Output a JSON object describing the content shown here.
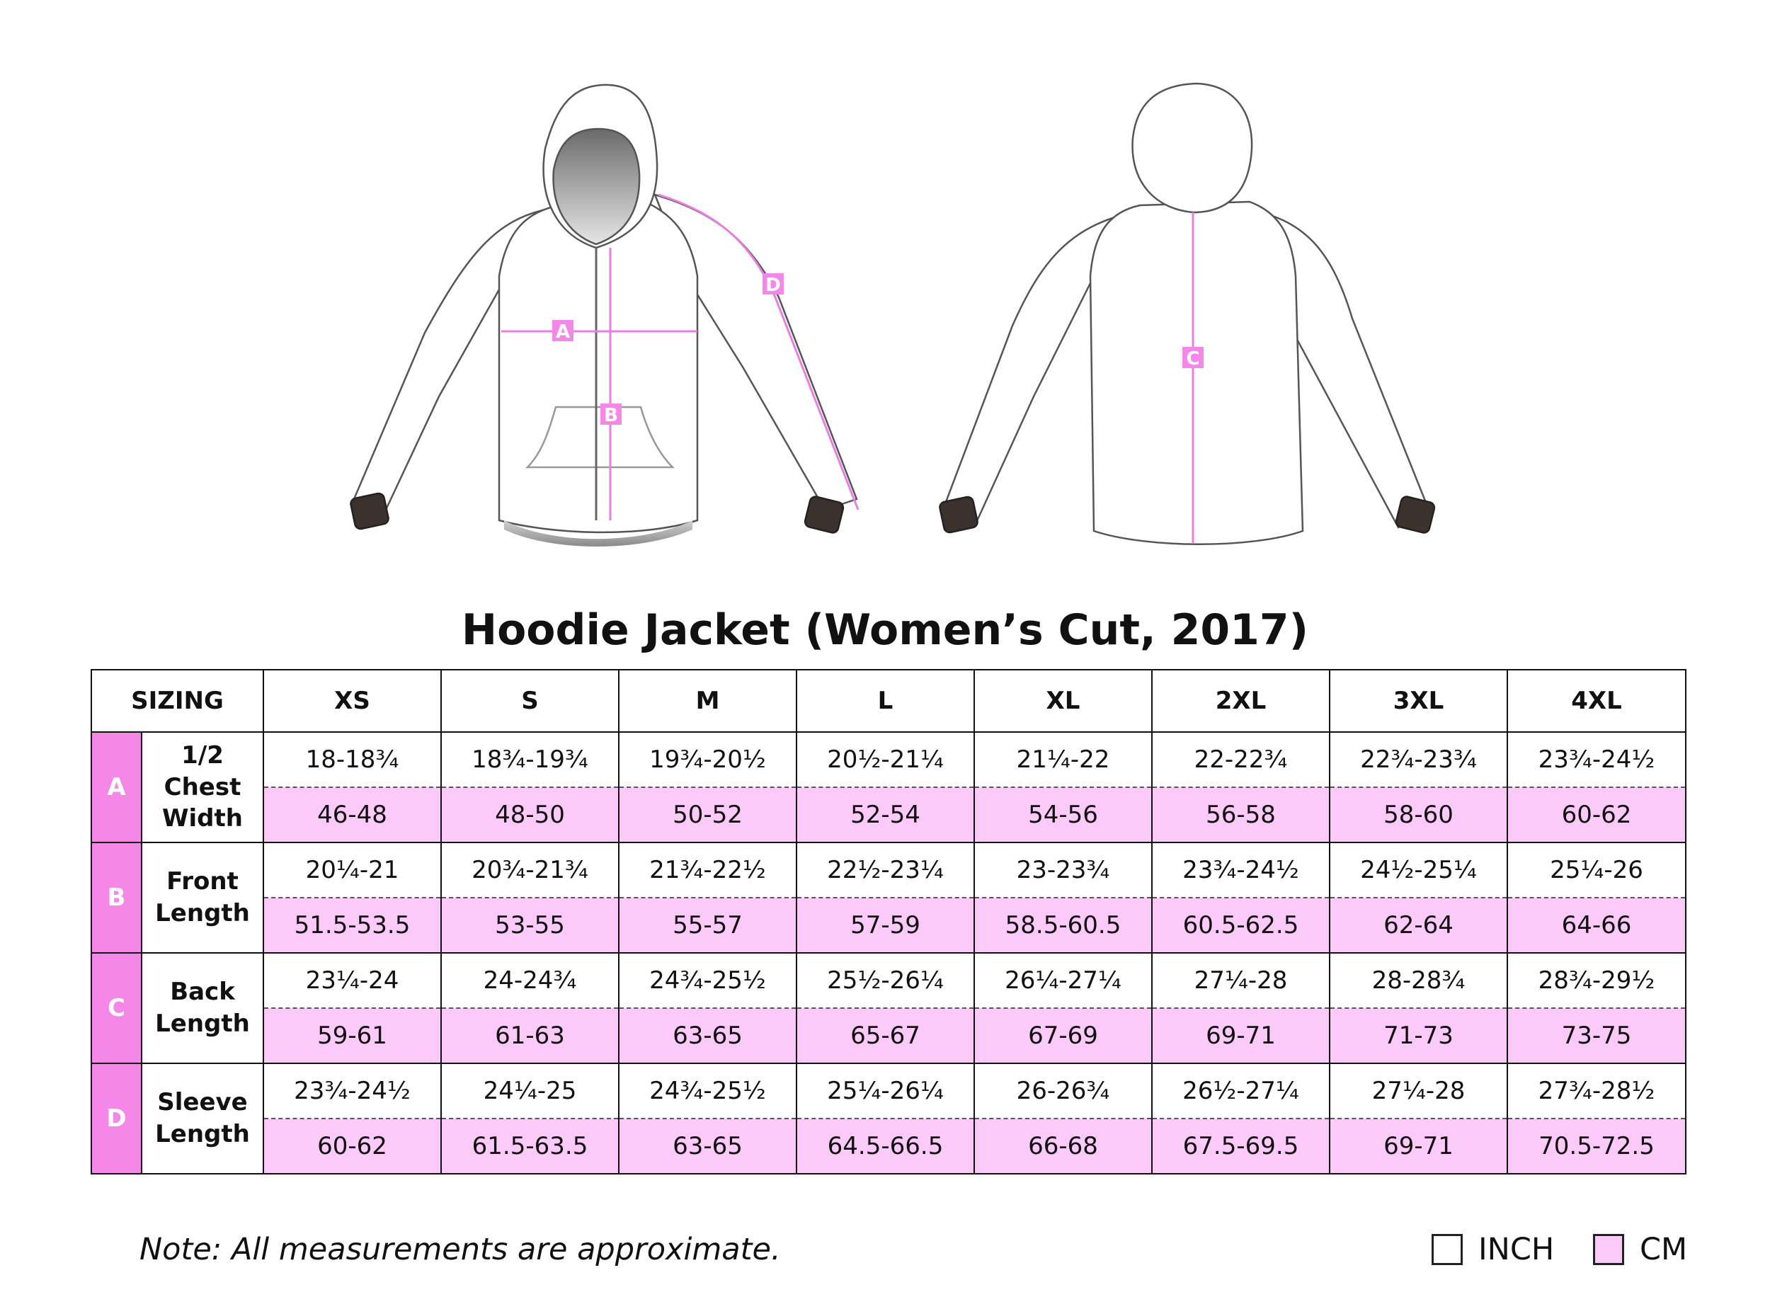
{
  "title": "Hoodie Jacket (Women’s Cut, 2017)",
  "illustration": {
    "markers": [
      "A",
      "B",
      "C",
      "D"
    ]
  },
  "table": {
    "corner": "SIZING",
    "sizes": [
      "XS",
      "S",
      "M",
      "L",
      "XL",
      "2XL",
      "3XL",
      "4XL"
    ],
    "rows": [
      {
        "letter": "A",
        "name_lines": [
          "1/2",
          "Chest",
          "Width"
        ],
        "inch": [
          "18-18¾",
          "18¾-19¾",
          "19¾-20½",
          "20½-21¼",
          "21¼-22",
          "22-22¾",
          "22¾-23¾",
          "23¾-24½"
        ],
        "cm": [
          "46-48",
          "48-50",
          "50-52",
          "52-54",
          "54-56",
          "56-58",
          "58-60",
          "60-62"
        ]
      },
      {
        "letter": "B",
        "name_lines": [
          "Front",
          "Length"
        ],
        "inch": [
          "20¼-21",
          "20¾-21¾",
          "21¾-22½",
          "22½-23¼",
          "23-23¾",
          "23¾-24½",
          "24½-25¼",
          "25¼-26"
        ],
        "cm": [
          "51.5-53.5",
          "53-55",
          "55-57",
          "57-59",
          "58.5-60.5",
          "60.5-62.5",
          "62-64",
          "64-66"
        ]
      },
      {
        "letter": "C",
        "name_lines": [
          "Back",
          "Length"
        ],
        "inch": [
          "23¼-24",
          "24-24¾",
          "24¾-25½",
          "25½-26¼",
          "26¼-27¼",
          "27¼-28",
          "28-28¾",
          "28¾-29½"
        ],
        "cm": [
          "59-61",
          "61-63",
          "63-65",
          "65-67",
          "67-69",
          "69-71",
          "71-73",
          "73-75"
        ]
      },
      {
        "letter": "D",
        "name_lines": [
          "Sleeve",
          "Length"
        ],
        "inch": [
          "23¾-24½",
          "24¼-25",
          "24¾-25½",
          "25¼-26¼",
          "26-26¾",
          "26½-27¼",
          "27¼-28",
          "27¾-28½"
        ],
        "cm": [
          "60-62",
          "61.5-63.5",
          "63-65",
          "64.5-66.5",
          "66-68",
          "67.5-69.5",
          "69-71",
          "70.5-72.5"
        ]
      }
    ]
  },
  "note": "Note: All measurements are approximate.",
  "legend": {
    "inch_label": "INCH",
    "cm_label": "CM"
  },
  "colors": {
    "accent_pink": "#f587e9",
    "cm_row_bg": "#fccaf9",
    "measure_line": "#e87fe0"
  }
}
